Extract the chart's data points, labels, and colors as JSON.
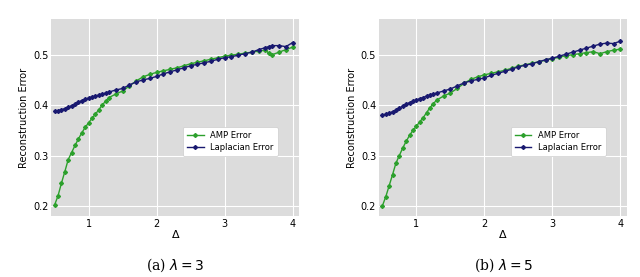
{
  "subplot1": {
    "title": "(a) $\\lambda = 3$",
    "amp_x": [
      0.5,
      0.55,
      0.6,
      0.65,
      0.7,
      0.75,
      0.8,
      0.85,
      0.9,
      0.95,
      1.0,
      1.05,
      1.1,
      1.15,
      1.2,
      1.25,
      1.3,
      1.4,
      1.5,
      1.6,
      1.7,
      1.8,
      1.9,
      2.0,
      2.1,
      2.2,
      2.3,
      2.4,
      2.5,
      2.6,
      2.7,
      2.8,
      2.9,
      3.0,
      3.1,
      3.2,
      3.3,
      3.4,
      3.5,
      3.6,
      3.65,
      3.7,
      3.8,
      3.9,
      4.0
    ],
    "amp_y": [
      0.202,
      0.22,
      0.245,
      0.268,
      0.292,
      0.306,
      0.32,
      0.333,
      0.345,
      0.356,
      0.365,
      0.374,
      0.382,
      0.391,
      0.4,
      0.408,
      0.415,
      0.422,
      0.428,
      0.438,
      0.448,
      0.456,
      0.461,
      0.465,
      0.468,
      0.471,
      0.474,
      0.478,
      0.482,
      0.485,
      0.488,
      0.491,
      0.494,
      0.497,
      0.499,
      0.501,
      0.503,
      0.505,
      0.507,
      0.509,
      0.503,
      0.5,
      0.505,
      0.51,
      0.515
    ],
    "lap_x": [
      0.5,
      0.55,
      0.6,
      0.65,
      0.7,
      0.75,
      0.8,
      0.85,
      0.9,
      0.95,
      1.0,
      1.05,
      1.1,
      1.15,
      1.2,
      1.25,
      1.3,
      1.4,
      1.5,
      1.6,
      1.7,
      1.8,
      1.9,
      2.0,
      2.1,
      2.2,
      2.3,
      2.4,
      2.5,
      2.6,
      2.7,
      2.8,
      2.9,
      3.0,
      3.1,
      3.2,
      3.3,
      3.4,
      3.5,
      3.6,
      3.65,
      3.7,
      3.8,
      3.9,
      4.0
    ],
    "lap_y": [
      0.388,
      0.389,
      0.391,
      0.393,
      0.396,
      0.399,
      0.402,
      0.406,
      0.409,
      0.412,
      0.414,
      0.416,
      0.418,
      0.42,
      0.422,
      0.424,
      0.426,
      0.43,
      0.433,
      0.44,
      0.446,
      0.45,
      0.453,
      0.457,
      0.462,
      0.466,
      0.47,
      0.474,
      0.478,
      0.481,
      0.484,
      0.487,
      0.491,
      0.494,
      0.496,
      0.499,
      0.502,
      0.505,
      0.51,
      0.514,
      0.516,
      0.518,
      0.518,
      0.516,
      0.524
    ]
  },
  "subplot2": {
    "title": "(b) $\\lambda = 5$",
    "amp_x": [
      0.5,
      0.55,
      0.6,
      0.65,
      0.7,
      0.75,
      0.8,
      0.85,
      0.9,
      0.95,
      1.0,
      1.05,
      1.1,
      1.15,
      1.2,
      1.25,
      1.3,
      1.4,
      1.5,
      1.6,
      1.7,
      1.8,
      1.9,
      2.0,
      2.1,
      2.2,
      2.3,
      2.4,
      2.5,
      2.6,
      2.7,
      2.8,
      2.9,
      3.0,
      3.1,
      3.2,
      3.3,
      3.4,
      3.5,
      3.6,
      3.7,
      3.8,
      3.9,
      4.0
    ],
    "amp_y": [
      0.2,
      0.218,
      0.24,
      0.262,
      0.285,
      0.3,
      0.315,
      0.328,
      0.34,
      0.35,
      0.358,
      0.367,
      0.375,
      0.385,
      0.395,
      0.403,
      0.41,
      0.418,
      0.424,
      0.433,
      0.443,
      0.451,
      0.456,
      0.46,
      0.463,
      0.466,
      0.469,
      0.473,
      0.477,
      0.48,
      0.483,
      0.486,
      0.489,
      0.492,
      0.495,
      0.498,
      0.5,
      0.502,
      0.504,
      0.506,
      0.502,
      0.506,
      0.509,
      0.511
    ],
    "lap_x": [
      0.5,
      0.55,
      0.6,
      0.65,
      0.7,
      0.75,
      0.8,
      0.85,
      0.9,
      0.95,
      1.0,
      1.05,
      1.1,
      1.15,
      1.2,
      1.25,
      1.3,
      1.4,
      1.5,
      1.6,
      1.7,
      1.8,
      1.9,
      2.0,
      2.1,
      2.2,
      2.3,
      2.4,
      2.5,
      2.6,
      2.7,
      2.8,
      2.9,
      3.0,
      3.1,
      3.2,
      3.3,
      3.4,
      3.5,
      3.6,
      3.7,
      3.8,
      3.9,
      4.0
    ],
    "lap_y": [
      0.38,
      0.382,
      0.384,
      0.387,
      0.39,
      0.394,
      0.398,
      0.402,
      0.405,
      0.408,
      0.41,
      0.413,
      0.415,
      0.418,
      0.42,
      0.422,
      0.424,
      0.428,
      0.432,
      0.438,
      0.444,
      0.448,
      0.451,
      0.454,
      0.459,
      0.463,
      0.467,
      0.471,
      0.476,
      0.479,
      0.482,
      0.486,
      0.49,
      0.493,
      0.497,
      0.501,
      0.505,
      0.509,
      0.513,
      0.517,
      0.521,
      0.523,
      0.522,
      0.527
    ]
  },
  "amp_color": "#2ca02c",
  "lap_color": "#191970",
  "bg_color": "#dcdcdc",
  "grid_color": "white",
  "ylabel": "Reconstruction Error",
  "xlabel": "Δ",
  "xlim": [
    0.45,
    4.1
  ],
  "ylim": [
    0.18,
    0.57
  ],
  "yticks": [
    0.2,
    0.3,
    0.4,
    0.5
  ],
  "xticks": [
    1,
    2,
    3,
    4
  ],
  "amp_label": "AMP Error",
  "lap_label": "Laplacian Error",
  "marker": "D",
  "markersize": 2.0,
  "linewidth": 1.0,
  "legend_fontsize": 6.0,
  "tick_fontsize": 7,
  "ylabel_fontsize": 7,
  "xlabel_fontsize": 8,
  "caption_fontsize": 10
}
